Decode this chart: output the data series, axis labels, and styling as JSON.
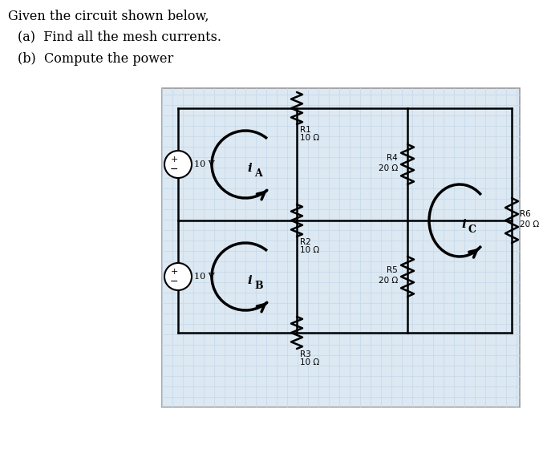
{
  "title_text": "Given the circuit shown below,",
  "part_a": "(a)  Find all the mesh currents.",
  "part_b": "(b)  Compute the power",
  "background_color": "#ffffff",
  "grid_color": "#c5d8e8",
  "circuit_bg": "#dce8f2",
  "circuit_border": "#999999",
  "wire_color": "#000000",
  "text_color": "#000000",
  "label_R1": "R1",
  "label_R1_val": "10 Ω",
  "label_R2": "R2",
  "label_R2_val": "10 Ω",
  "label_R3": "R3",
  "label_R3_val": "10 Ω",
  "label_R4": "R4",
  "label_R4_val": "20 Ω",
  "label_R5": "R5",
  "label_R5_val": "20 Ω",
  "label_R6": "R6",
  "label_R6_val": "20 Ω",
  "label_V1": "10 V",
  "label_V2": "10 V"
}
